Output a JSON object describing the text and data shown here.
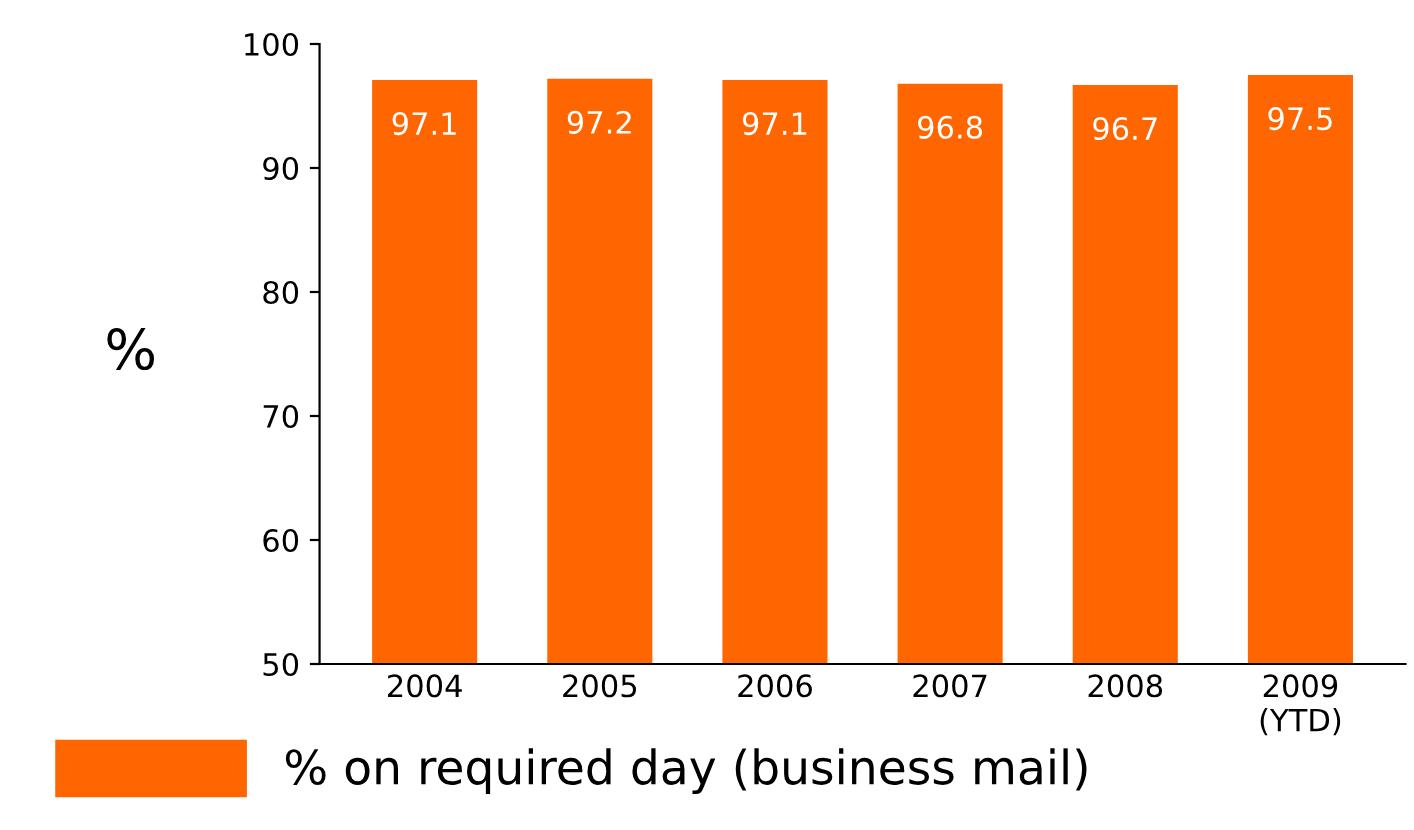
{
  "chart_data": {
    "type": "bar",
    "ylabel": "%",
    "categories": [
      "2004",
      "2005",
      "2006",
      "2007",
      "2008",
      "2009\n(YTD)"
    ],
    "series": [
      {
        "name": "% on required day (business mail)",
        "color": "#ff6600",
        "values": [
          97.1,
          97.2,
          97.1,
          96.8,
          96.7,
          97.5
        ]
      }
    ],
    "ylim": [
      50,
      100
    ],
    "yticks": [
      50,
      60,
      70,
      80,
      90,
      100
    ],
    "grid": false,
    "legend": "bottom left",
    "data_labels": true
  }
}
